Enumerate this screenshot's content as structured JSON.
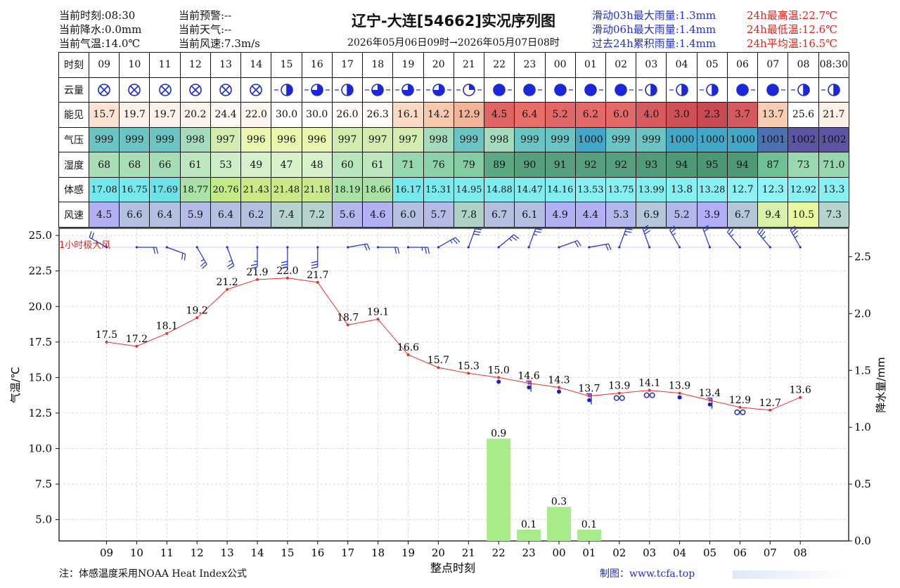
{
  "header": {
    "left1": [
      "当前时刻:08:30",
      "当前降水:0.0mm",
      "当前气温:14.0℃"
    ],
    "left2": [
      "当前预警:--",
      "当前天气:--",
      "当前风速:7.3m/s"
    ],
    "title": "辽宁-大连[54662]实况序列图",
    "subtitle": "2026年05月06日09时→2026年05月07日08时",
    "rain": [
      "滑动03h最大雨量:1.3mm",
      "滑动06h最大雨量:1.4mm",
      "过去24h累积雨量:1.4mm"
    ],
    "temp": [
      "24h最高温:22.7℃",
      "24h最低温:12.6℃",
      "24h平均温:16.5℃"
    ]
  },
  "table": {
    "row_labels": [
      "时刻",
      "云量",
      "能见",
      "气压",
      "湿度",
      "体感",
      "风速"
    ],
    "times": [
      "09",
      "10",
      "11",
      "12",
      "13",
      "14",
      "15",
      "16",
      "17",
      "18",
      "19",
      "20",
      "21",
      "22",
      "23",
      "00",
      "01",
      "02",
      "03",
      "04",
      "05",
      "06",
      "07",
      "08",
      "08:30"
    ],
    "cloud": [
      "x",
      "x",
      "x",
      "x",
      "x",
      "x",
      "h",
      "d",
      "h",
      "q3",
      "q3",
      "q3",
      "q1",
      "f",
      "f",
      "f",
      "f",
      "f",
      "h",
      "h",
      "h",
      "f",
      "f",
      "h",
      "h"
    ],
    "vis": [
      "15.7",
      "19.7",
      "19.7",
      "20.2",
      "24.4",
      "22.0",
      "30.0",
      "30.0",
      "26.0",
      "26.3",
      "16.1",
      "14.2",
      "12.9",
      "4.5",
      "6.4",
      "5.2",
      "6.2",
      "6.0",
      "4.0",
      "3.0",
      "2.3",
      "3.7",
      "13.7",
      "25.6",
      "21.7"
    ],
    "pres": [
      "999",
      "999",
      "999",
      "998",
      "997",
      "996",
      "996",
      "996",
      "997",
      "997",
      "997",
      "998",
      "999",
      "998",
      "999",
      "999",
      "1000",
      "999",
      "999",
      "1000",
      "1000",
      "1000",
      "1001",
      "1002",
      "1002"
    ],
    "hum": [
      "68",
      "68",
      "66",
      "61",
      "53",
      "49",
      "47",
      "48",
      "60",
      "61",
      "71",
      "76",
      "79",
      "89",
      "90",
      "91",
      "92",
      "92",
      "93",
      "94",
      "95",
      "94",
      "87",
      "73",
      "71.0"
    ],
    "feel": [
      "17.08",
      "16.75",
      "17.69",
      "18.77",
      "20.76",
      "21.43",
      "21.48",
      "21.18",
      "18.19",
      "18.66",
      "16.17",
      "15.31",
      "14.95",
      "14.88",
      "14.47",
      "14.16",
      "13.53",
      "13.75",
      "13.99",
      "13.8",
      "13.28",
      "12.7",
      "12.3",
      "12.92",
      "13.3"
    ],
    "wind": [
      "4.5",
      "6.6",
      "6.4",
      "5.9",
      "6.4",
      "6.2",
      "7.4",
      "7.2",
      "5.6",
      "4.6",
      "6.0",
      "5.7",
      "7.8",
      "6.7",
      "6.1",
      "4.9",
      "4.4",
      "5.3",
      "6.9",
      "5.2",
      "3.9",
      "6.7",
      "9.4",
      "10.5",
      "7.3"
    ]
  },
  "colors": {
    "vis": [
      "#fbe2d3",
      "#fdf2eb",
      "#fdf2eb",
      "#fdf3ec",
      "#fef8f4",
      "#fdf5ef",
      "#ffffff",
      "#ffffff",
      "#fefaf7",
      "#fefaf7",
      "#fbd9c5",
      "#f9c9ae",
      "#f4b499",
      "#e06464",
      "#e86e6a",
      "#e26766",
      "#e46968",
      "#e46968",
      "#d75a5f",
      "#cf5056",
      "#c84b52",
      "#d55a5f",
      "#f9cdb3",
      "#ffffff",
      "#fdf0e8"
    ],
    "pres": [
      "#6cc5c5",
      "#6cc5c5",
      "#6cc5c5",
      "#a5dcbd",
      "#d3edb0",
      "#eaf6ae",
      "#eaf6ae",
      "#eaf6ae",
      "#d3edb0",
      "#d3edb0",
      "#d3edb0",
      "#a5dcbd",
      "#6cc5c5",
      "#a5dcbd",
      "#6cc5c5",
      "#6cc5c5",
      "#42a8c8",
      "#6cc5c5",
      "#6cc5c5",
      "#42a8c8",
      "#42a8c8",
      "#42a8c8",
      "#4b71b2",
      "#5c55a4",
      "#5c55a4"
    ],
    "hum": [
      "#a9deb7",
      "#a9deb7",
      "#a6ddb6",
      "#bde7bf",
      "#cdeec6",
      "#d7f2cb",
      "#d8f3cc",
      "#d7f2cb",
      "#b9e6bd",
      "#bde7bf",
      "#97d7b0",
      "#8bd1a9",
      "#84cda4",
      "#5da985",
      "#589f7e",
      "#579f7e",
      "#56a07f",
      "#56a07f",
      "#529b7a",
      "#509977",
      "#4e9775",
      "#509977",
      "#6fbf97",
      "#9ad8b1",
      "#97d7b0"
    ],
    "feel": [
      "#74e8ec",
      "#77e9ed",
      "#6ce3e8",
      "#a9e1a6",
      "#c4ea86",
      "#cbe886",
      "#cbe886",
      "#c9e98a",
      "#a9e1a6",
      "#a9e1a6",
      "#76e9ed",
      "#7ceaee",
      "#7eebef",
      "#7eebef",
      "#80eced",
      "#82edf0",
      "#88f0f2",
      "#86eff1",
      "#84eef1",
      "#86eff1",
      "#88f0f2",
      "#8ef2f4",
      "#90f3f5",
      "#8cf1f4",
      "#88f0f2"
    ],
    "wind": [
      "#b3b0f4",
      "#b5bfe0",
      "#b5bfe0",
      "#b3bbe6",
      "#b5bfe0",
      "#b5bfe0",
      "#b7d3cd",
      "#b7d3cd",
      "#b4b7ec",
      "#b3b0f4",
      "#b5bfe0",
      "#b4bbe7",
      "#afd2c4",
      "#b5bfe0",
      "#b5bfe0",
      "#b3b0f4",
      "#b3b0f4",
      "#b3b8ea",
      "#b5c7d9",
      "#b3b8ea",
      "#b2aef8",
      "#b5c5da",
      "#d9f0a8",
      "#eaf6a0",
      "#b7d3cd"
    ]
  },
  "labels": {
    "gust_label": "1小时极大风",
    "ylabel_left": "气温/℃",
    "ylabel_right": "降水量/mm",
    "xlabel": "整点时刻",
    "note": "注：体感温度采用NOAA Heat Index公式",
    "credit": "制图：www.tcfa.top"
  },
  "chart_data": {
    "type": "line",
    "x": [
      "09",
      "10",
      "11",
      "12",
      "13",
      "14",
      "15",
      "16",
      "17",
      "18",
      "19",
      "20",
      "21",
      "22",
      "23",
      "00",
      "01",
      "02",
      "03",
      "04",
      "05",
      "06",
      "07",
      "08"
    ],
    "series": [
      {
        "values": [
          17.5,
          17.2,
          18.1,
          19.2,
          21.2,
          21.9,
          22.0,
          21.7,
          18.7,
          19.1,
          16.6,
          15.7,
          15.3,
          15.0,
          14.6,
          14.3,
          13.7,
          13.9,
          14.1,
          13.9,
          13.4,
          12.9,
          12.7,
          13.6
        ]
      },
      {
        "type": "bar",
        "axis": "right",
        "values": [
          null,
          null,
          null,
          null,
          null,
          null,
          null,
          null,
          null,
          null,
          null,
          null,
          null,
          0.9,
          0.1,
          0.3,
          0.1,
          null,
          null,
          null,
          null,
          null,
          null,
          null
        ]
      }
    ],
    "ylim": [
      3.5,
      25.5
    ],
    "ylim_right": [
      0.0,
      2.75
    ],
    "yticks": [
      "5.0",
      "7.5",
      "10.0",
      "12.5",
      "15.0",
      "17.5",
      "20.0",
      "22.5",
      "25.0"
    ],
    "yticks_right": [
      "0.0",
      "0.5",
      "1.0",
      "1.5",
      "2.0",
      "2.5"
    ],
    "temp_labels": [
      "17.5",
      "17.2",
      "18.1",
      "19.2",
      "21.2",
      "21.9",
      "22.0",
      "21.7",
      "18.7",
      "19.1",
      "16.6",
      "15.7",
      "15.3",
      "15.0",
      "14.6",
      "14.3",
      "13.7",
      "13.9",
      "14.1",
      "13.9",
      "13.4",
      "12.9",
      "12.7",
      "13.6"
    ],
    "rain_labels": [
      "0.9",
      "0.1",
      "0.3",
      "0.1"
    ],
    "wind_dir_deg": [
      300,
      90,
      110,
      150,
      160,
      180,
      180,
      180,
      80,
      90,
      90,
      60,
      20,
      50,
      20,
      70,
      80,
      20,
      340,
      330,
      340,
      320,
      320,
      330
    ],
    "gust_speed": [
      8,
      9,
      9,
      10,
      11,
      11,
      12,
      12,
      9,
      8,
      10,
      10,
      12,
      11,
      10,
      9,
      9,
      11,
      12,
      11,
      9,
      11,
      14,
      15
    ],
    "weather_symbols": [
      null,
      null,
      null,
      null,
      null,
      null,
      null,
      null,
      null,
      null,
      null,
      null,
      null,
      "rain",
      "shower",
      "rain",
      "shower",
      "drizzle",
      "drizzle",
      "rain",
      "shower",
      "drizzle",
      null,
      null
    ],
    "grid": true,
    "colors": {
      "temp": "#e8312a",
      "bar": "#a8ec8a",
      "wind": "#1f2fd0",
      "weather": "#1520c8"
    }
  }
}
